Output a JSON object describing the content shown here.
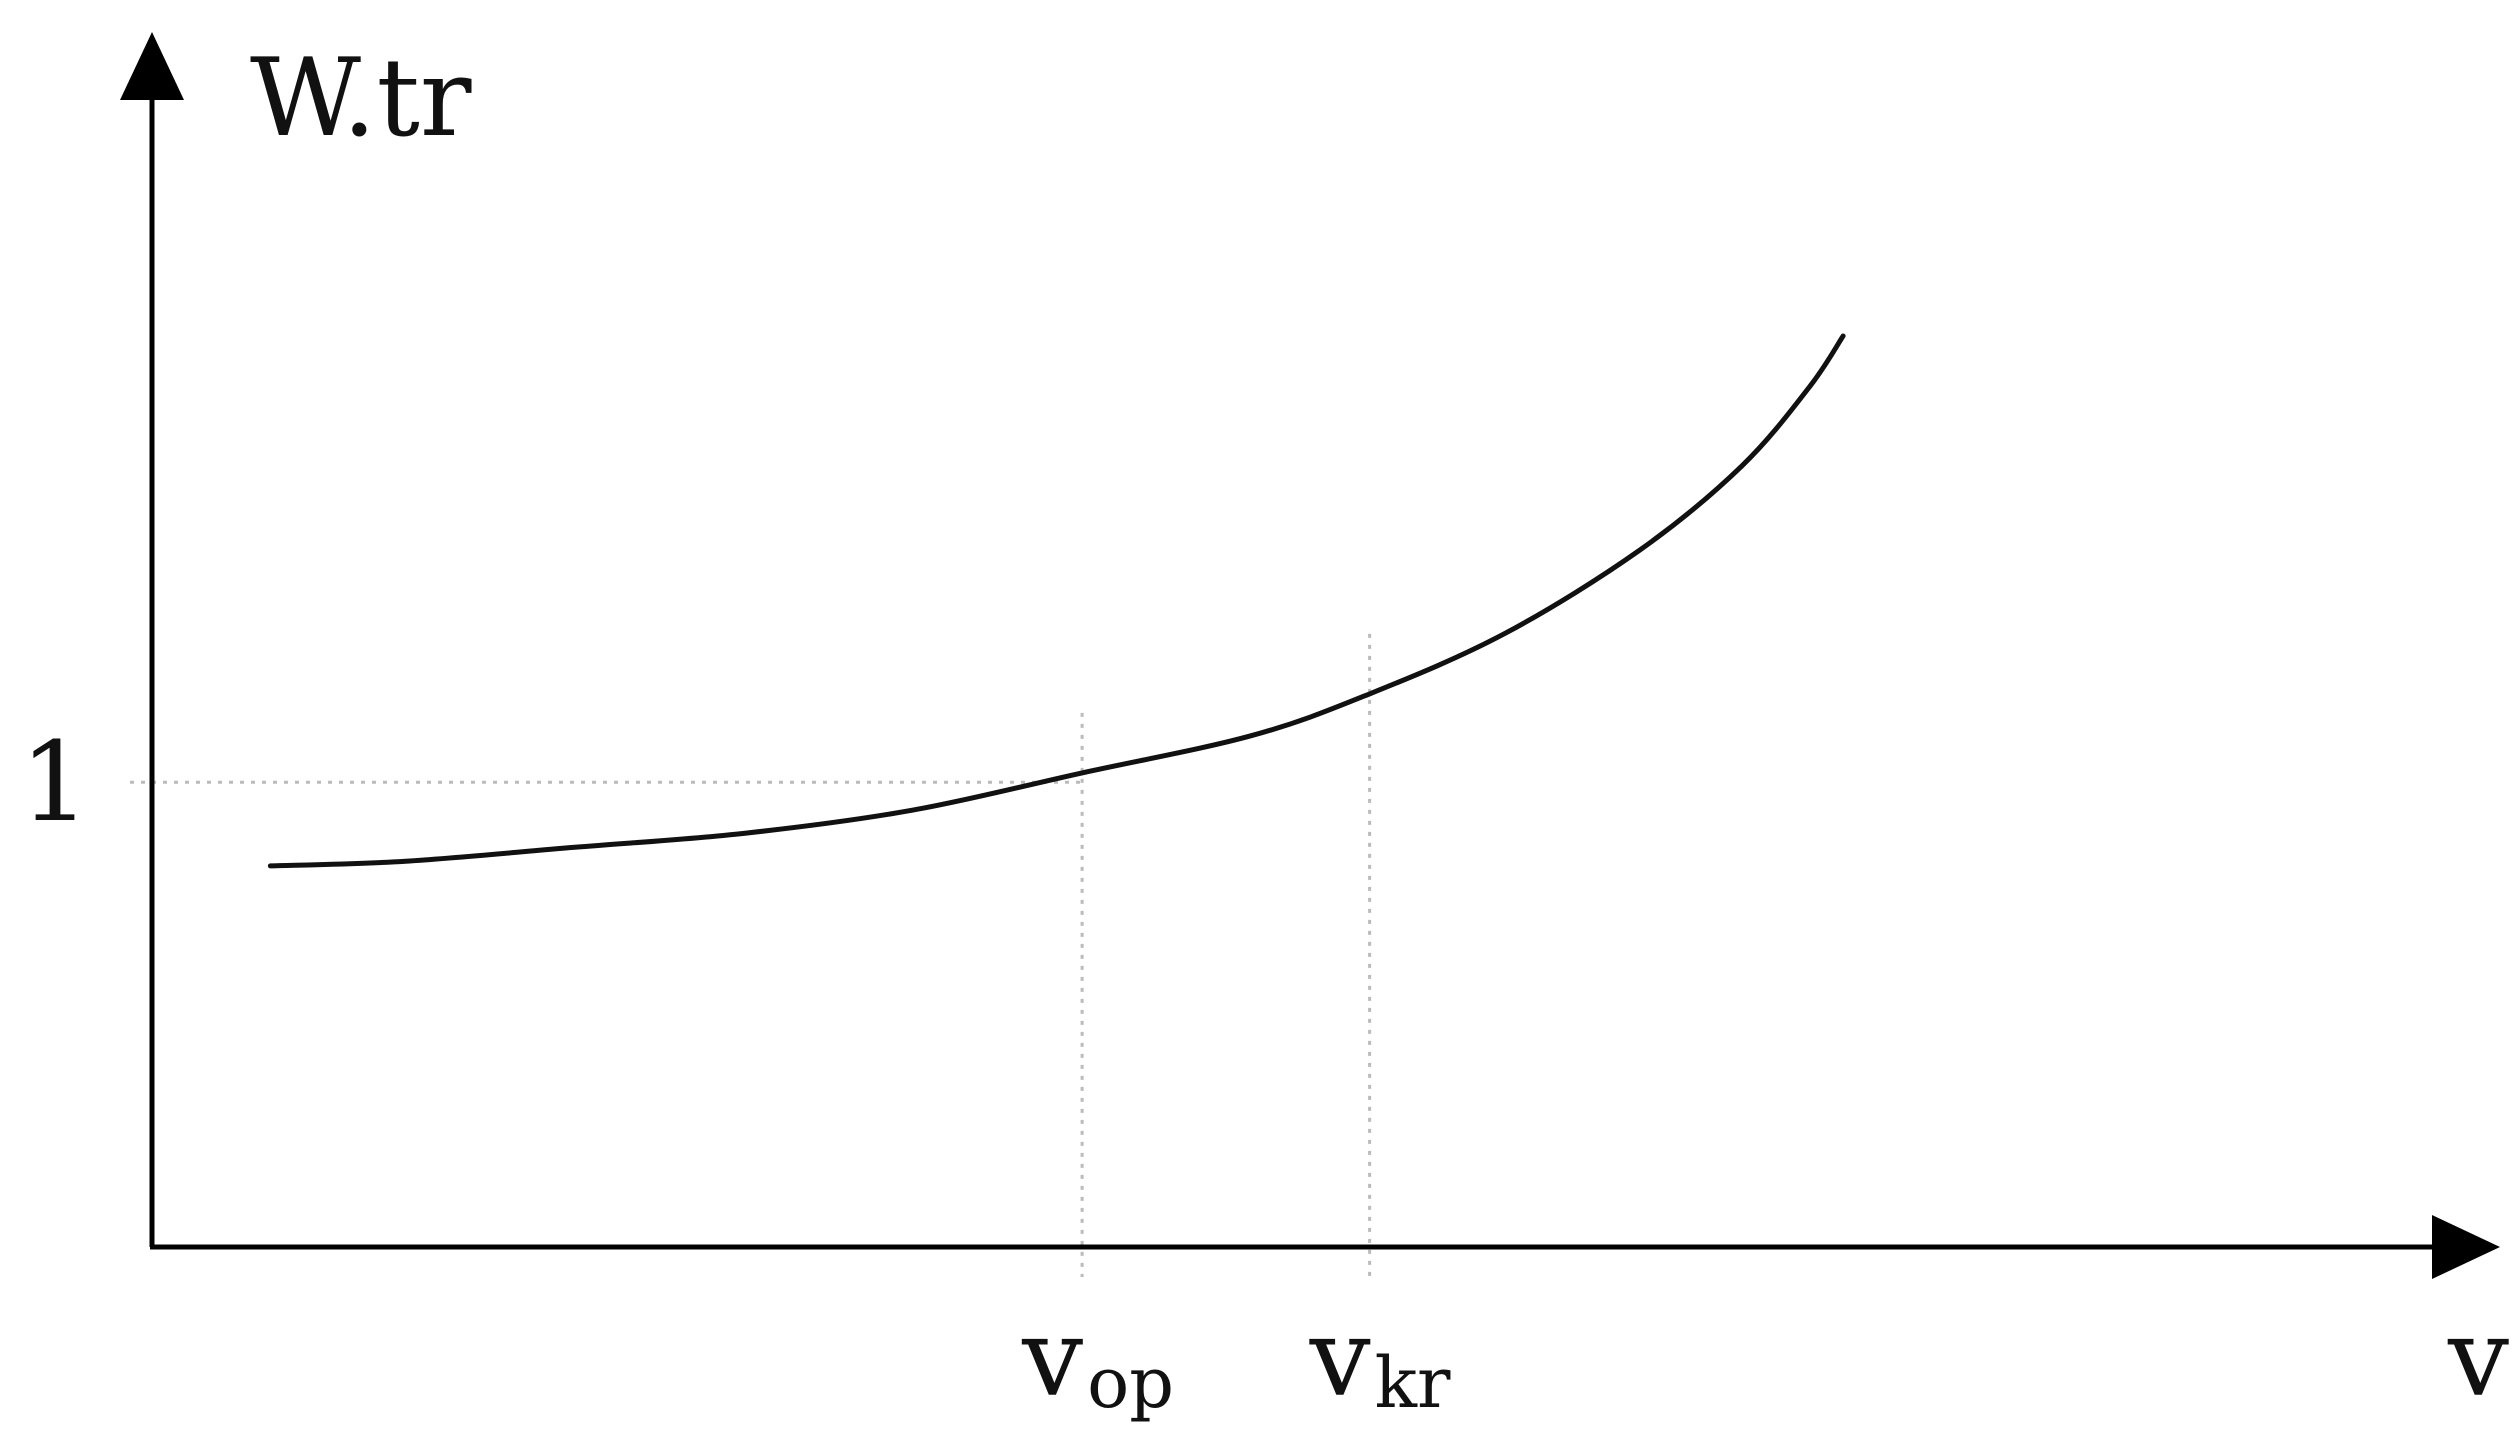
{
  "chart_data": {
    "type": "line",
    "ylabel": "W.tr",
    "xlabel": "v",
    "y_ticks": [
      {
        "label": "1",
        "value": 1
      }
    ],
    "x_markers": [
      {
        "id": "v_op",
        "main": "v",
        "sub": "op",
        "value": 0.55
      },
      {
        "id": "v_kr",
        "main": "v",
        "sub": "kr",
        "value": 0.72
      }
    ],
    "xlim": [
      0,
      1.35
    ],
    "ylim": [
      0,
      2.5
    ],
    "series": [
      {
        "x": [
          0.07,
          0.15,
          0.25,
          0.35,
          0.45,
          0.55,
          0.65,
          0.72,
          0.8,
          0.88,
          0.94,
          0.98,
          1.0
        ],
        "y": [
          0.82,
          0.83,
          0.86,
          0.89,
          0.94,
          1.02,
          1.1,
          1.19,
          1.32,
          1.5,
          1.68,
          1.85,
          1.96
        ]
      }
    ],
    "guides": {
      "style": "dotted",
      "color": "#bbbbbb"
    },
    "colors": {
      "axis": "#000000",
      "curve": "#111111"
    }
  }
}
